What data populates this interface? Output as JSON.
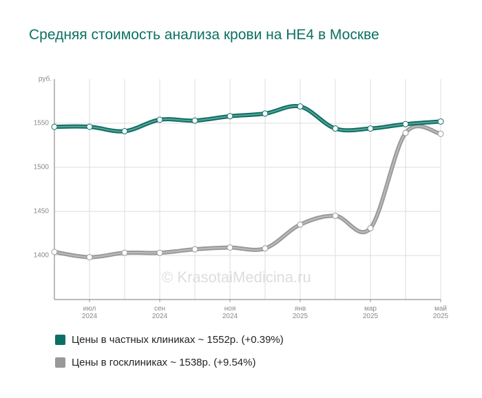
{
  "chart_data": {
    "type": "line",
    "title": "Средняя стоимость анализа крови на НЕ4 в Москве",
    "y_label": "руб.",
    "watermark": "© KrasotaiMedicina.ru",
    "categories": [
      null,
      "июл\n2024",
      null,
      "сен\n2024",
      null,
      "ноя\n2024",
      null,
      "янв\n2025",
      null,
      "мар\n2025",
      null,
      "май\n2025"
    ],
    "series": [
      {
        "name": "Цены в частных клиниках ~ 1552р. (+0.39%)",
        "color": "#0b6f63",
        "values": [
          1546,
          1546,
          1541,
          1554,
          1553,
          1558,
          1561,
          1569,
          1544,
          1544,
          1549,
          1552
        ]
      },
      {
        "name": "Цены в госклиниках ~ 1538р. (+9.54%)",
        "color": "#999999",
        "values": [
          1404,
          1398,
          1403,
          1403,
          1407,
          1409,
          1408,
          1435,
          1445,
          1431,
          1539,
          1538
        ]
      }
    ],
    "ylim": [
      1350,
      1600
    ],
    "yticks": [
      1400,
      1450,
      1500,
      1550
    ],
    "grid": true
  }
}
